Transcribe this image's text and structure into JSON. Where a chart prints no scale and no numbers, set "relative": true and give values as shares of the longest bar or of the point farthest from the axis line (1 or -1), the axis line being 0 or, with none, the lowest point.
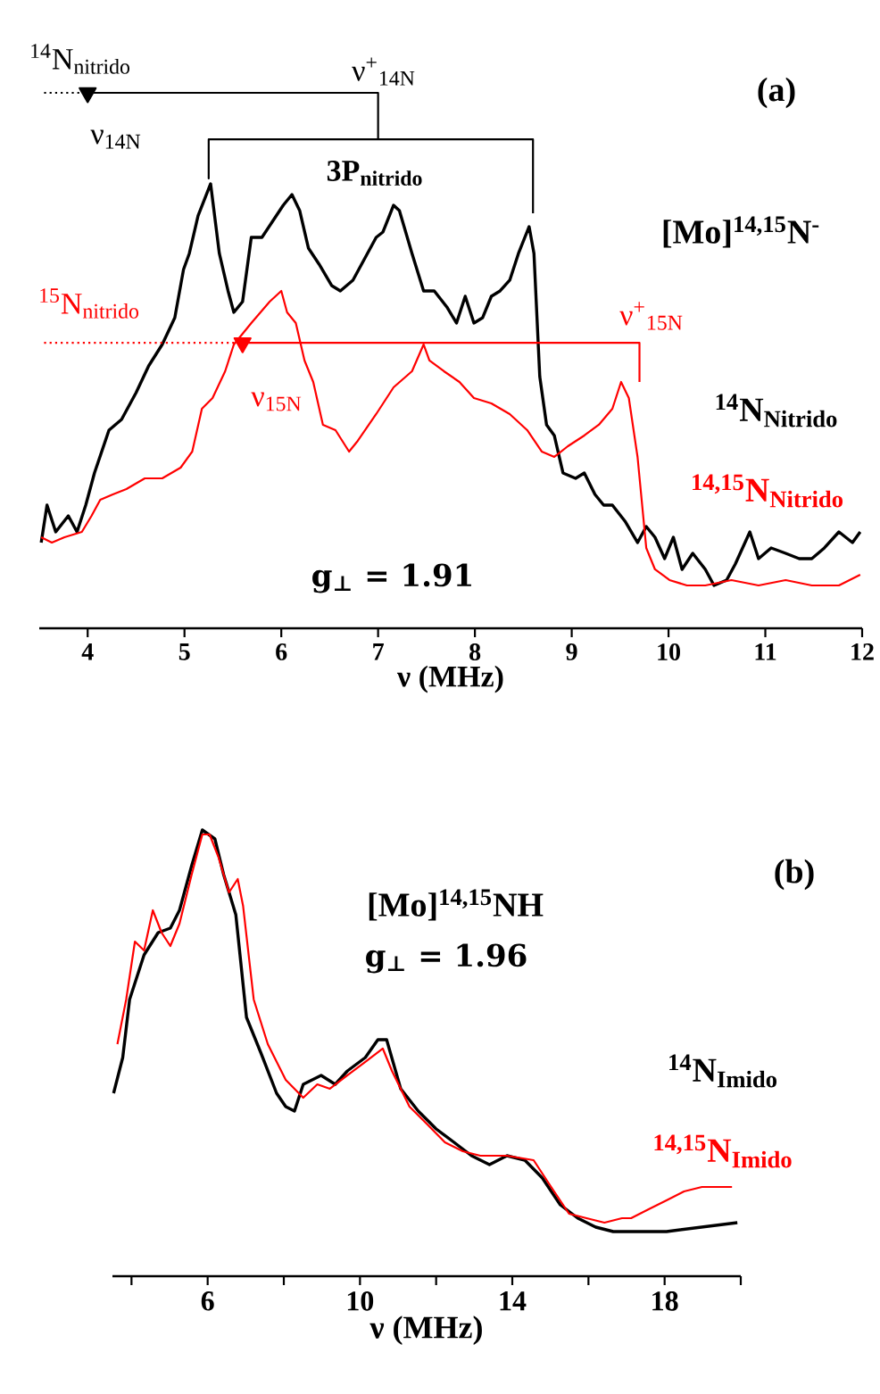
{
  "chart_data": [
    {
      "type": "line",
      "relative": true,
      "xlabel": "ν (MHz)",
      "xlim": [
        3.5,
        12
      ],
      "xticks": [
        4,
        5,
        6,
        7,
        8,
        9,
        10,
        11,
        12
      ],
      "annotations": [
        "(a)",
        "[Mo]$^{14,15}$N$^{-}$",
        "g$_{⊥}$ = 1.91",
        "$^{14}$N$_{nitrido}$",
        "ν$_{14N}$",
        "ν$^{+}$$_{14N}$",
        "3P$_{nitrido}$",
        "$^{15}$N$_{nitrido}$",
        "ν$^{+}$$_{15N}$",
        "ν$_{15N}$"
      ],
      "series": [
        {
          "name": "$^{14}$N$_{Nitrido}$",
          "color": "#000000",
          "x": [
            3.52,
            3.58,
            3.67,
            3.8,
            3.89,
            3.98,
            4.07,
            4.22,
            4.35,
            4.5,
            4.63,
            4.77,
            4.9,
            4.99,
            5.05,
            5.14,
            5.27,
            5.36,
            5.45,
            5.51,
            5.6,
            5.69,
            5.8,
            5.91,
            6.02,
            6.11,
            6.19,
            6.28,
            6.39,
            6.52,
            6.61,
            6.74,
            6.89,
            6.98,
            7.05,
            7.16,
            7.22,
            7.35,
            7.47,
            7.58,
            7.71,
            7.81,
            7.9,
            7.99,
            8.08,
            8.17,
            8.26,
            8.36,
            8.45,
            8.56,
            8.61,
            8.67,
            8.74,
            8.82,
            8.91,
            9.04,
            9.13,
            9.24,
            9.33,
            9.42,
            9.55,
            9.68,
            9.77,
            9.86,
            9.96,
            10.05,
            10.14,
            10.25,
            10.38,
            10.47,
            10.6,
            10.69,
            10.84,
            10.93,
            11.06,
            11.21,
            11.35,
            11.48,
            11.61,
            11.76,
            11.9,
            11.98
          ],
          "values": [
            0.16,
            0.23,
            0.18,
            0.21,
            0.18,
            0.23,
            0.29,
            0.37,
            0.39,
            0.44,
            0.49,
            0.53,
            0.58,
            0.67,
            0.7,
            0.77,
            0.83,
            0.7,
            0.63,
            0.59,
            0.61,
            0.73,
            0.73,
            0.76,
            0.79,
            0.81,
            0.78,
            0.71,
            0.68,
            0.64,
            0.63,
            0.65,
            0.7,
            0.73,
            0.74,
            0.79,
            0.78,
            0.7,
            0.63,
            0.63,
            0.6,
            0.57,
            0.62,
            0.57,
            0.58,
            0.62,
            0.63,
            0.65,
            0.7,
            0.75,
            0.7,
            0.47,
            0.38,
            0.36,
            0.29,
            0.28,
            0.29,
            0.25,
            0.23,
            0.23,
            0.2,
            0.16,
            0.19,
            0.17,
            0.13,
            0.17,
            0.11,
            0.14,
            0.11,
            0.08,
            0.09,
            0.12,
            0.18,
            0.13,
            0.15,
            0.14,
            0.13,
            0.13,
            0.15,
            0.18,
            0.16,
            0.18
          ]
        },
        {
          "name": "$^{14,15}$N$_{Nitrido}$",
          "color": "#ff0000",
          "x": [
            3.52,
            3.63,
            3.76,
            3.94,
            4.04,
            4.13,
            4.26,
            4.4,
            4.59,
            4.77,
            4.96,
            5.08,
            5.18,
            5.29,
            5.42,
            5.51,
            5.6,
            5.69,
            5.88,
            6.0,
            6.06,
            6.15,
            6.24,
            6.33,
            6.43,
            6.56,
            6.7,
            6.79,
            6.98,
            7.16,
            7.35,
            7.47,
            7.53,
            7.68,
            7.84,
            7.99,
            8.17,
            8.36,
            8.54,
            8.69,
            8.82,
            8.96,
            9.13,
            9.28,
            9.42,
            9.51,
            9.59,
            9.68,
            9.77,
            9.86,
            10.01,
            10.19,
            10.38,
            10.65,
            10.93,
            11.21,
            11.48,
            11.76,
            11.98
          ],
          "values": [
            0.17,
            0.16,
            0.17,
            0.18,
            0.21,
            0.24,
            0.25,
            0.26,
            0.28,
            0.28,
            0.3,
            0.33,
            0.41,
            0.43,
            0.48,
            0.53,
            0.55,
            0.57,
            0.61,
            0.63,
            0.59,
            0.57,
            0.5,
            0.46,
            0.38,
            0.37,
            0.33,
            0.35,
            0.4,
            0.45,
            0.48,
            0.53,
            0.5,
            0.48,
            0.46,
            0.43,
            0.42,
            0.4,
            0.37,
            0.33,
            0.32,
            0.34,
            0.36,
            0.38,
            0.41,
            0.46,
            0.43,
            0.32,
            0.15,
            0.11,
            0.09,
            0.08,
            0.08,
            0.09,
            0.08,
            0.09,
            0.08,
            0.08,
            0.1
          ]
        },
        {
          "type": "line",
          "color": "#000000",
          "x": [
            4.0,
            7.0,
            7.0,
            5.25,
            5.25,
            5.25,
            8.6,
            8.6
          ],
          "values": [
            1.0,
            1.0,
            0.913,
            0.913,
            0.84,
            0.913,
            0.913,
            0.775
          ]
        },
        {
          "type": "line",
          "line_style": "dotted",
          "color": "#000000",
          "x": [
            3.55,
            4.0
          ],
          "values": [
            1.0,
            1.0
          ]
        },
        {
          "type": "scatter",
          "marker": "triangle",
          "color": "#000000",
          "x": [
            4.0
          ],
          "values": [
            1.0
          ]
        },
        {
          "type": "line",
          "color": "#ff0000",
          "x": [
            5.6,
            9.7,
            9.7
          ],
          "values": [
            0.533,
            0.533,
            0.46
          ]
        },
        {
          "type": "line",
          "line_style": "dotted",
          "color": "#ff0000",
          "x": [
            3.55,
            5.6
          ],
          "values": [
            0.533,
            0.533
          ]
        },
        {
          "type": "scatter",
          "marker": "triangle",
          "color": "#ff0000",
          "x": [
            5.6
          ],
          "values": [
            0.533
          ]
        }
      ]
    },
    {
      "type": "line",
      "relative": true,
      "xlabel": "ν (MHz)",
      "xlim": [
        3.5,
        20
      ],
      "xticks": [
        {
          "value": 4,
          "label": null
        },
        6,
        {
          "value": 8,
          "label": null
        },
        10,
        {
          "value": 12,
          "label": null
        },
        14,
        {
          "value": 16,
          "label": null
        },
        18,
        {
          "value": 20,
          "label": null
        }
      ],
      "annotations": [
        "(b)",
        "[Mo]$^{14,15}$NH",
        "g$_{⊥}$ = 1.96"
      ],
      "series": [
        {
          "name": "$^{14}$N$_{Imido}$",
          "color": "#000000",
          "x": [
            3.53,
            3.77,
            3.95,
            4.33,
            4.7,
            5.02,
            5.26,
            5.58,
            5.86,
            6.19,
            6.42,
            6.74,
            7.02,
            7.4,
            7.81,
            8.05,
            8.28,
            8.51,
            8.98,
            9.35,
            9.67,
            10.14,
            10.47,
            10.7,
            11.07,
            11.53,
            12.0,
            12.47,
            12.93,
            13.4,
            13.86,
            14.33,
            14.79,
            15.26,
            15.72,
            16.19,
            16.65,
            17.12,
            18.05,
            18.98,
            19.91
          ],
          "values": [
            0.41,
            0.49,
            0.62,
            0.72,
            0.77,
            0.78,
            0.82,
            0.92,
            1.0,
            0.98,
            0.9,
            0.81,
            0.58,
            0.5,
            0.41,
            0.38,
            0.37,
            0.43,
            0.45,
            0.43,
            0.46,
            0.49,
            0.53,
            0.53,
            0.42,
            0.37,
            0.33,
            0.3,
            0.27,
            0.25,
            0.27,
            0.26,
            0.22,
            0.16,
            0.13,
            0.11,
            0.1,
            0.1,
            0.1,
            0.11,
            0.12
          ]
        },
        {
          "name": "$^{14,15}$N$_{Imido}$",
          "color": "#ff0000",
          "x": [
            3.63,
            3.86,
            4.09,
            4.33,
            4.56,
            4.79,
            5.02,
            5.26,
            5.58,
            5.86,
            6.05,
            6.28,
            6.56,
            6.79,
            6.93,
            7.21,
            7.58,
            8.05,
            8.51,
            8.88,
            9.21,
            9.67,
            10.14,
            10.6,
            10.84,
            11.3,
            11.77,
            12.23,
            12.7,
            13.16,
            13.86,
            14.56,
            15.02,
            15.49,
            15.95,
            16.42,
            16.88,
            17.12,
            17.58,
            18.05,
            18.51,
            18.98,
            19.77
          ],
          "values": [
            0.52,
            0.62,
            0.75,
            0.73,
            0.82,
            0.77,
            0.74,
            0.79,
            0.9,
            0.99,
            0.99,
            0.94,
            0.86,
            0.89,
            0.83,
            0.62,
            0.52,
            0.44,
            0.4,
            0.43,
            0.42,
            0.45,
            0.48,
            0.51,
            0.46,
            0.38,
            0.34,
            0.3,
            0.28,
            0.27,
            0.27,
            0.26,
            0.2,
            0.14,
            0.13,
            0.12,
            0.13,
            0.13,
            0.15,
            0.17,
            0.19,
            0.2,
            0.2
          ]
        }
      ]
    }
  ]
}
